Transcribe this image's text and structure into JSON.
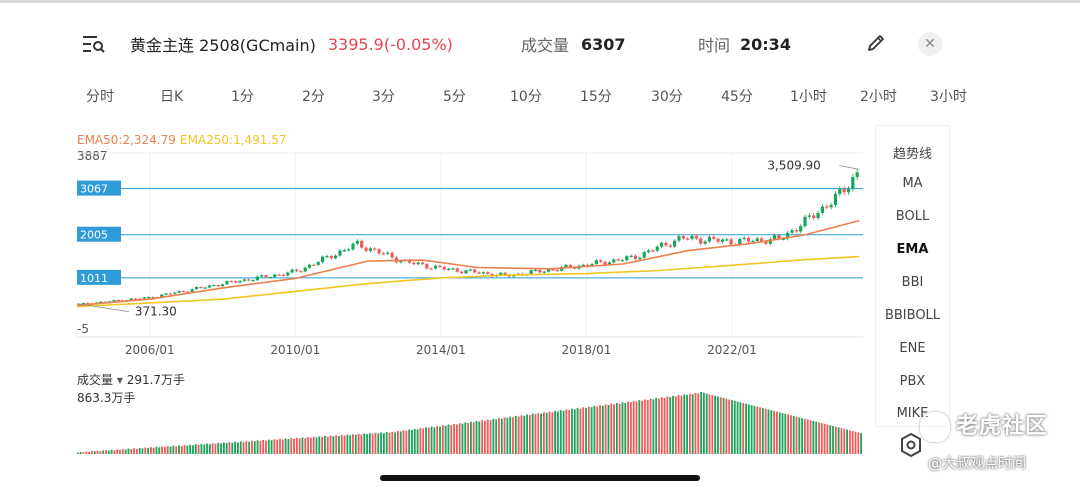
{
  "header": {
    "symbol_name": "黄金主连 2508(GCmain)",
    "price_change": "3395.9(-0.05%)",
    "volume_label": "成交量",
    "volume_value": "6307",
    "time_label": "时间",
    "time_value": "20:34"
  },
  "tabs": [
    "分时",
    "日K",
    "1分",
    "2分",
    "3分",
    "5分",
    "10分",
    "15分",
    "30分",
    "45分",
    "1小时",
    "2小时",
    "3小时"
  ],
  "indicators": [
    "趋势线",
    "MA",
    "BOLL",
    "EMA",
    "BBI",
    "BBIBOLL",
    "ENE",
    "PBX",
    "MIKE"
  ],
  "active_indicator": "EMA",
  "colors": {
    "up": "#1aa35a",
    "down": "#ee5b5b",
    "ema50": "#e9814e",
    "ema250": "#f2c623",
    "hline": "#2f9bd8",
    "price": "#e64552"
  },
  "watermark": {
    "brand": "老虎社区",
    "author": "@大叔观点时间"
  },
  "chart_data": {
    "type": "line",
    "legend": {
      "ema50": "EMA50:2,324.79",
      "ema250": "EMA250:1,491.57"
    },
    "y_top_label": "3887",
    "y_bottom_label": "-5",
    "ylim": [
      -5,
      3887
    ],
    "x": [
      2004.0,
      2006.0,
      2008.0,
      2010.0,
      2011.7,
      2013.0,
      2014.0,
      2015.8,
      2018.0,
      2019.3,
      2020.6,
      2022.0,
      2023.3,
      2024.0,
      2025.0,
      2025.5
    ],
    "close": [
      400,
      560,
      880,
      1150,
      1790,
      1380,
      1230,
      1060,
      1310,
      1480,
      1930,
      1850,
      1900,
      2300,
      2950,
      3500
    ],
    "x_ticks": [
      "2006/01",
      "2010/01",
      "2014/01",
      "2018/01",
      "2022/01"
    ],
    "x_tick_values": [
      2006.0,
      2010.0,
      2014.0,
      2018.0,
      2022.0
    ],
    "x_range": [
      2004.0,
      2025.6
    ],
    "h_lines": [
      "3067",
      "2005",
      "1011"
    ],
    "h_line_values": [
      3067,
      2005,
      1011
    ],
    "annotations": {
      "high": "3,509.90",
      "low": "371.30"
    },
    "ema50": {
      "x": [
        2004.0,
        2006.0,
        2008.0,
        2010.0,
        2012.0,
        2013.5,
        2015.0,
        2017.0,
        2019.0,
        2020.8,
        2022.5,
        2024.0,
        2025.5
      ],
      "y": [
        380,
        520,
        780,
        1000,
        1400,
        1420,
        1250,
        1220,
        1330,
        1640,
        1800,
        2000,
        2330
      ]
    },
    "ema250": {
      "x": [
        2004.0,
        2008.0,
        2010.0,
        2012.0,
        2014.0,
        2016.0,
        2018.0,
        2020.0,
        2022.0,
        2024.0,
        2025.5
      ],
      "y": [
        350,
        520,
        700,
        880,
        1010,
        1080,
        1110,
        1180,
        1300,
        1430,
        1500
      ]
    },
    "volume": {
      "label": "成交量",
      "current": "291.7万手",
      "max_label": "863.3万手",
      "max": 863.3,
      "x_range": [
        2004.0,
        2025.6
      ],
      "bars": [
        20,
        28,
        25,
        35,
        30,
        42,
        38,
        45,
        40,
        50,
        55,
        48,
        60,
        52,
        65,
        58,
        70,
        62,
        75,
        68,
        80,
        72,
        85,
        78,
        90,
        82,
        95,
        88,
        100,
        92,
        105,
        98,
        110,
        102,
        115,
        108,
        120,
        112,
        125,
        118,
        130,
        122,
        135,
        128,
        140,
        132,
        145,
        138,
        150,
        142,
        155,
        148,
        160,
        152,
        165,
        158,
        170,
        162,
        175,
        168,
        180,
        172,
        185,
        178,
        190,
        182,
        195,
        188,
        200,
        192,
        205,
        198,
        210,
        202,
        215,
        208,
        220,
        212,
        225,
        218,
        230,
        222,
        235,
        228,
        240,
        232,
        245,
        238,
        250,
        242,
        255,
        248,
        260,
        252,
        265,
        258,
        270,
        262,
        275,
        268,
        280,
        272,
        285,
        278,
        290,
        282,
        295,
        288,
        300,
        292,
        305,
        298,
        310,
        302,
        320,
        315,
        330,
        325,
        340,
        335,
        350,
        345,
        360,
        355,
        370,
        365,
        380,
        372,
        390,
        382,
        400,
        392,
        410,
        402,
        420,
        412,
        430,
        422,
        440,
        432,
        450,
        442,
        460,
        452,
        470,
        462,
        480,
        472,
        490,
        482,
        500,
        492,
        510,
        502,
        520,
        512,
        530,
        522,
        540,
        532,
        550,
        542,
        560,
        552,
        570,
        562,
        580,
        572,
        590,
        582,
        600,
        592,
        610,
        602,
        620,
        612,
        630,
        622,
        640,
        632,
        650,
        642,
        660,
        652,
        670,
        662,
        680,
        672,
        690,
        682,
        700,
        692,
        710,
        702,
        720,
        712,
        730,
        722,
        740,
        732,
        750,
        742,
        760,
        752,
        770,
        762,
        780,
        772,
        790,
        782,
        800,
        792,
        810,
        802,
        820,
        812,
        830,
        822,
        840,
        832,
        850,
        842,
        863,
        852,
        840,
        830,
        820,
        810,
        800,
        790,
        780,
        770,
        760,
        750,
        740,
        730,
        720,
        710,
        700,
        690,
        680,
        670,
        660,
        650,
        640,
        630,
        620,
        610,
        600,
        590,
        580,
        570,
        560,
        550,
        540,
        530,
        520,
        510,
        500,
        490,
        480,
        470,
        460,
        450,
        440,
        430,
        420,
        410,
        400,
        390,
        380,
        370,
        360,
        350,
        340,
        330,
        320,
        310,
        300,
        292
      ]
    }
  }
}
